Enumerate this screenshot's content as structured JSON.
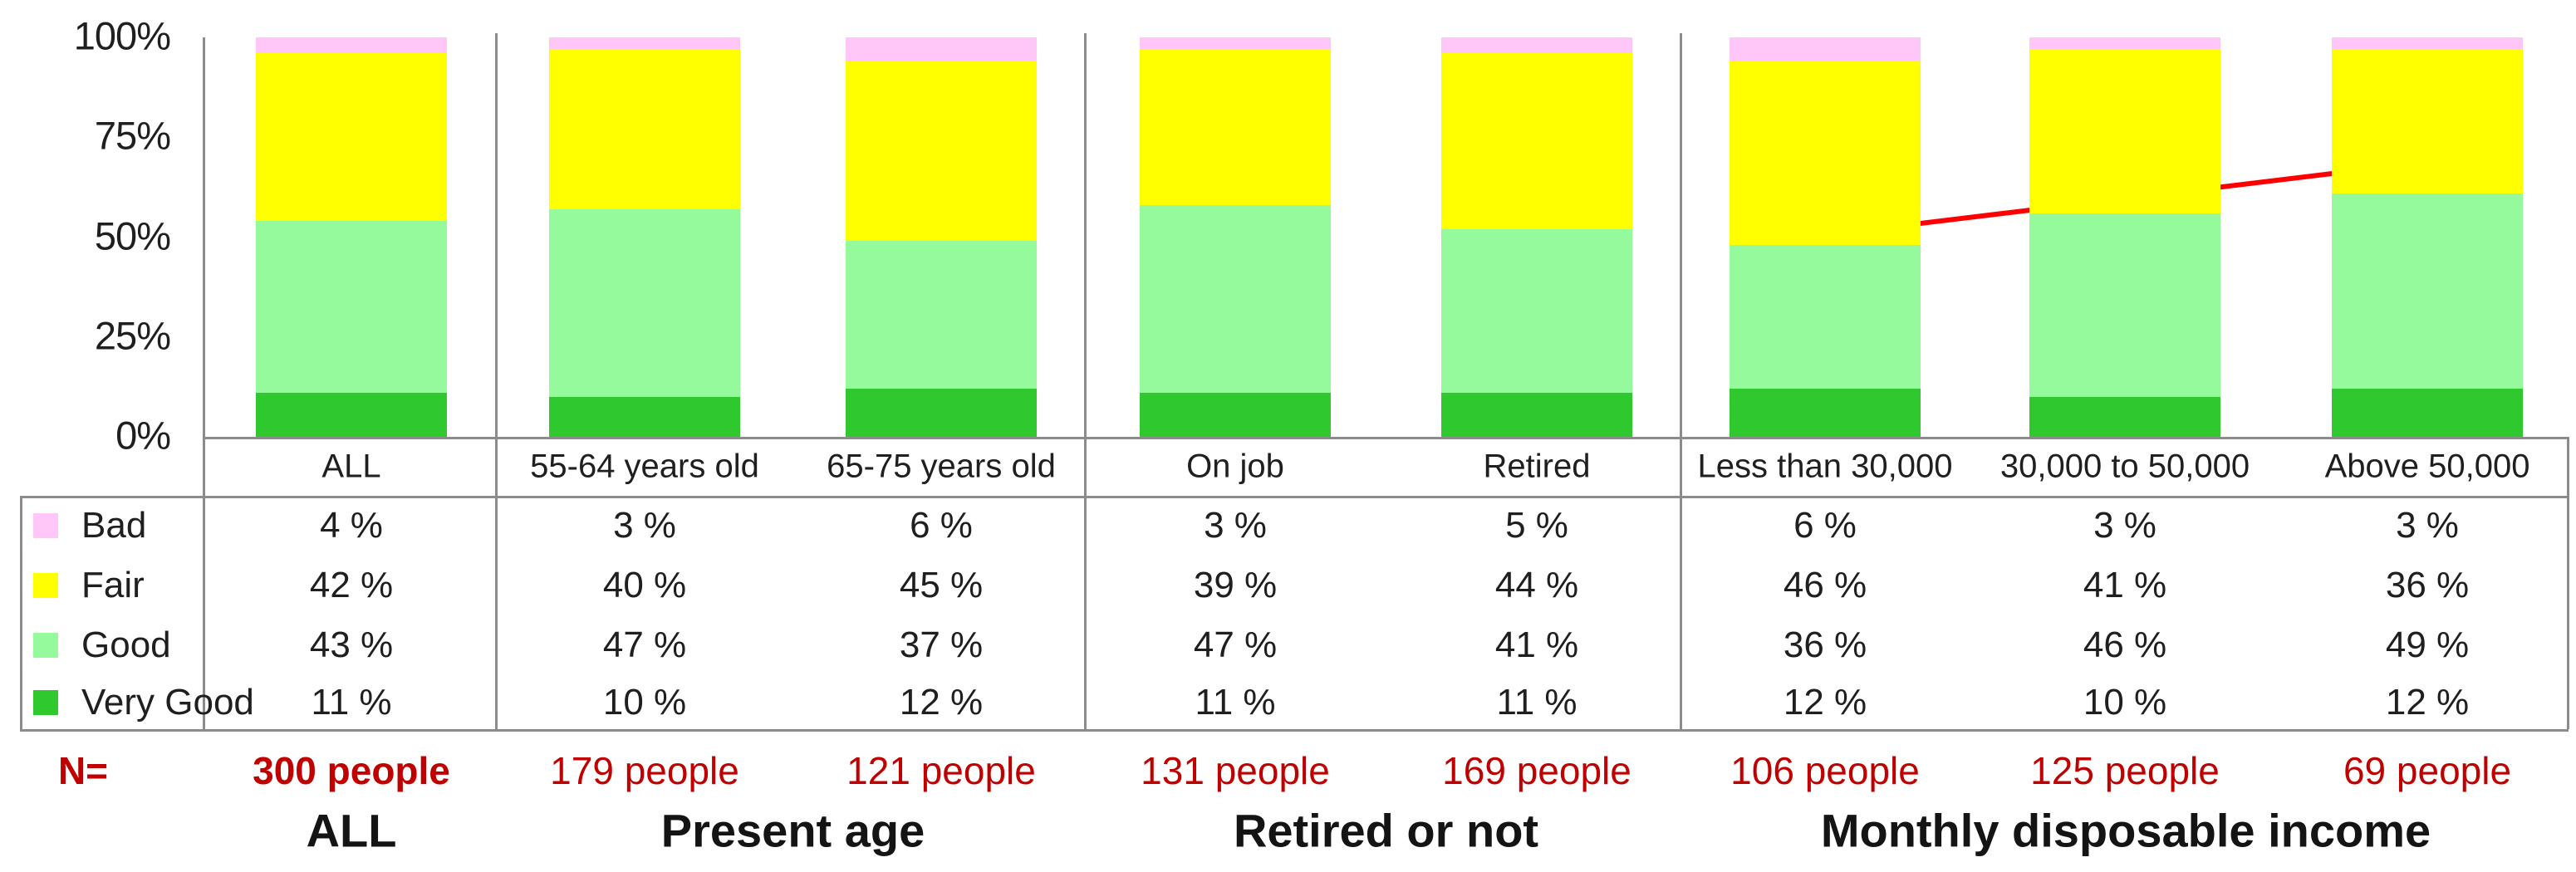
{
  "chart_data": {
    "type": "bar",
    "stacked": true,
    "title": "",
    "xlabel": "",
    "ylabel": "",
    "ylim": [
      0,
      100
    ],
    "grid": false,
    "legend_position": "table-left",
    "ytick_labels": [
      "100%",
      "75%",
      "50%",
      "25%",
      "0%"
    ],
    "ytick_values": [
      100,
      75,
      50,
      25,
      0
    ],
    "categories": [
      "ALL",
      "55-64 years old",
      "65-75 years old",
      "On job",
      "Retired",
      "Less than 30,000",
      "30,000 to 50,000",
      "Above 50,000"
    ],
    "series": [
      {
        "name": "Bad",
        "color": "#FFC6F7",
        "values": [
          4,
          3,
          6,
          3,
          5,
          6,
          3,
          3
        ],
        "cells": [
          "4 %",
          "3 %",
          "6 %",
          "3 %",
          "5 %",
          "6 %",
          "3 %",
          "3 %"
        ]
      },
      {
        "name": "Fair",
        "color": "#FFFF00",
        "values": [
          42,
          40,
          45,
          39,
          44,
          46,
          41,
          36
        ],
        "cells": [
          "42 %",
          "40 %",
          "45 %",
          "39 %",
          "44 %",
          "46 %",
          "41 %",
          "36 %"
        ]
      },
      {
        "name": "Good",
        "color": "#94FA9C",
        "values": [
          43,
          47,
          37,
          47,
          41,
          36,
          46,
          49
        ],
        "cells": [
          "43 %",
          "47 %",
          "37 %",
          "47 %",
          "41 %",
          "36 %",
          "46 %",
          "49 %"
        ]
      },
      {
        "name": "Very Good",
        "color": "#2FC82F",
        "values": [
          11,
          10,
          12,
          11,
          11,
          12,
          10,
          12
        ],
        "cells": [
          "11 %",
          "10 %",
          "12 %",
          "11 %",
          "11 %",
          "12 %",
          "10 %",
          "12 %"
        ]
      }
    ],
    "sample_row": {
      "label": "N=",
      "values": [
        "300 people",
        "179 people",
        "121 people",
        "131 people",
        "169 people",
        "106 people",
        "125 people",
        "69 people"
      ],
      "emphasis_index": 0
    },
    "group_labels": [
      {
        "label": "ALL",
        "columns": [
          0
        ]
      },
      {
        "label": "Present age",
        "columns": [
          1,
          2
        ]
      },
      {
        "label": "Retired or not",
        "columns": [
          3,
          4
        ]
      },
      {
        "label": "Monthly disposable income",
        "columns": [
          5,
          6,
          7
        ]
      }
    ],
    "annotation": {
      "type": "arrow",
      "color": "#FF0000",
      "from_category": "Less than 30,000",
      "to_category": "Above 50,000",
      "meaning": "good-rating rises with income"
    }
  },
  "colors": {
    "text": "#1F1F1F",
    "line": "#8C8C8C",
    "red_text": "#C00000",
    "arrow": "#FF0000",
    "background": "#FFFFFF"
  }
}
